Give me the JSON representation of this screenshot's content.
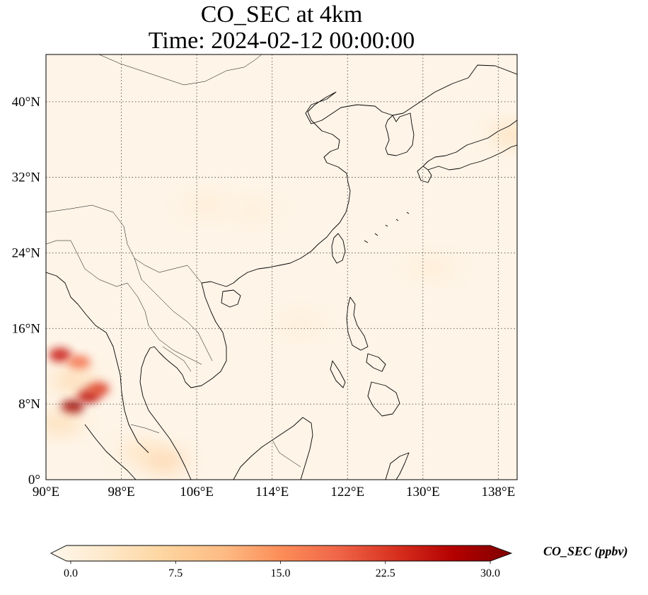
{
  "title": {
    "line1": "CO_SEC at 4km",
    "line2": "Time: 2024-02-12 00:00:00"
  },
  "map": {
    "lon_range": [
      90,
      140
    ],
    "lat_range": [
      0,
      45
    ],
    "lon_ticks": [
      {
        "value": 90,
        "label": "90°E"
      },
      {
        "value": 98,
        "label": "98°E"
      },
      {
        "value": 106,
        "label": "106°E"
      },
      {
        "value": 114,
        "label": "114°E"
      },
      {
        "value": 122,
        "label": "122°E"
      },
      {
        "value": 130,
        "label": "130°E"
      },
      {
        "value": 138,
        "label": "138°E"
      }
    ],
    "lat_ticks": [
      {
        "value": 0,
        "label": "0°"
      },
      {
        "value": 8,
        "label": "8°N"
      },
      {
        "value": 16,
        "label": "16°N"
      },
      {
        "value": 24,
        "label": "24°N"
      },
      {
        "value": 32,
        "label": "32°N"
      },
      {
        "value": 40,
        "label": "40°N"
      }
    ],
    "gridlines": true,
    "background_color": "#fef4e7",
    "coast_color": "#000000",
    "hotspots": [
      {
        "lon": 91.5,
        "lat": 13.2,
        "value": 24
      },
      {
        "lon": 93.5,
        "lat": 12.4,
        "value": 18
      },
      {
        "lon": 92.8,
        "lat": 7.7,
        "value": 28
      },
      {
        "lon": 94.5,
        "lat": 8.9,
        "value": 26
      },
      {
        "lon": 95.5,
        "lat": 9.6,
        "value": 22
      },
      {
        "lon": 93.0,
        "lat": 10.5,
        "value": 8
      },
      {
        "lon": 102.5,
        "lat": 2.0,
        "value": 9
      },
      {
        "lon": 100.0,
        "lat": 3.0,
        "value": 5
      },
      {
        "lon": 91.5,
        "lat": 6.0,
        "value": 7
      },
      {
        "lon": 139.5,
        "lat": 36.5,
        "value": 6
      },
      {
        "lon": 107.0,
        "lat": 29.0,
        "value": 3
      },
      {
        "lon": 112.0,
        "lat": 28.5,
        "value": 2.5
      },
      {
        "lon": 131.0,
        "lat": 22.5,
        "value": 3
      },
      {
        "lon": 117.0,
        "lat": 16.5,
        "value": 2.5
      }
    ]
  },
  "colorbar": {
    "label": "CO_SEC (ppbv)",
    "min": 0.0,
    "max": 30.0,
    "ticks": [
      "0.0",
      "7.5",
      "15.0",
      "22.5",
      "30.0"
    ],
    "colormap": "OrRd",
    "extend": "both"
  }
}
